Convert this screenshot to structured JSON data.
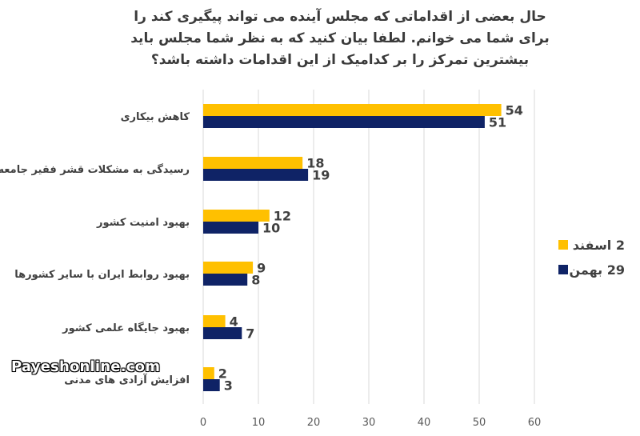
{
  "chart_data": {
    "type": "bar",
    "orientation": "horizontal",
    "title": "حال بعضی از اقداماتی که مجلس آینده می تواند پیگیری کند را برای شما می خوانم. لطفا بیان کنید که به نظر شما مجلس باید بیشترین تمرکز را بر کدامیک از این اقدامات داشته باشد؟",
    "categories": [
      "کاهش بیکاری",
      "رسیدگی به مشکلات قشر فقیر جامعه",
      "بهبود امنیت کشور",
      "بهبود روابط ایران با سایر کشورها",
      "بهبود جایگاه علمی کشور",
      "افزایش آزادی های مدنی"
    ],
    "series": [
      {
        "name": "2 اسفند",
        "color": "#FFC000",
        "values": [
          54,
          18,
          12,
          9,
          4,
          2
        ]
      },
      {
        "name": "29 بهمن",
        "color": "#0F2366",
        "values": [
          51,
          19,
          10,
          8,
          7,
          3
        ]
      }
    ],
    "xlim": [
      0,
      60
    ],
    "xticks": [
      0,
      10,
      20,
      30,
      40,
      50,
      60
    ],
    "xlabel": "",
    "ylabel": "",
    "grid": true,
    "legend_position": "right",
    "data_labels": true
  },
  "watermark": "Payeshonline.com"
}
